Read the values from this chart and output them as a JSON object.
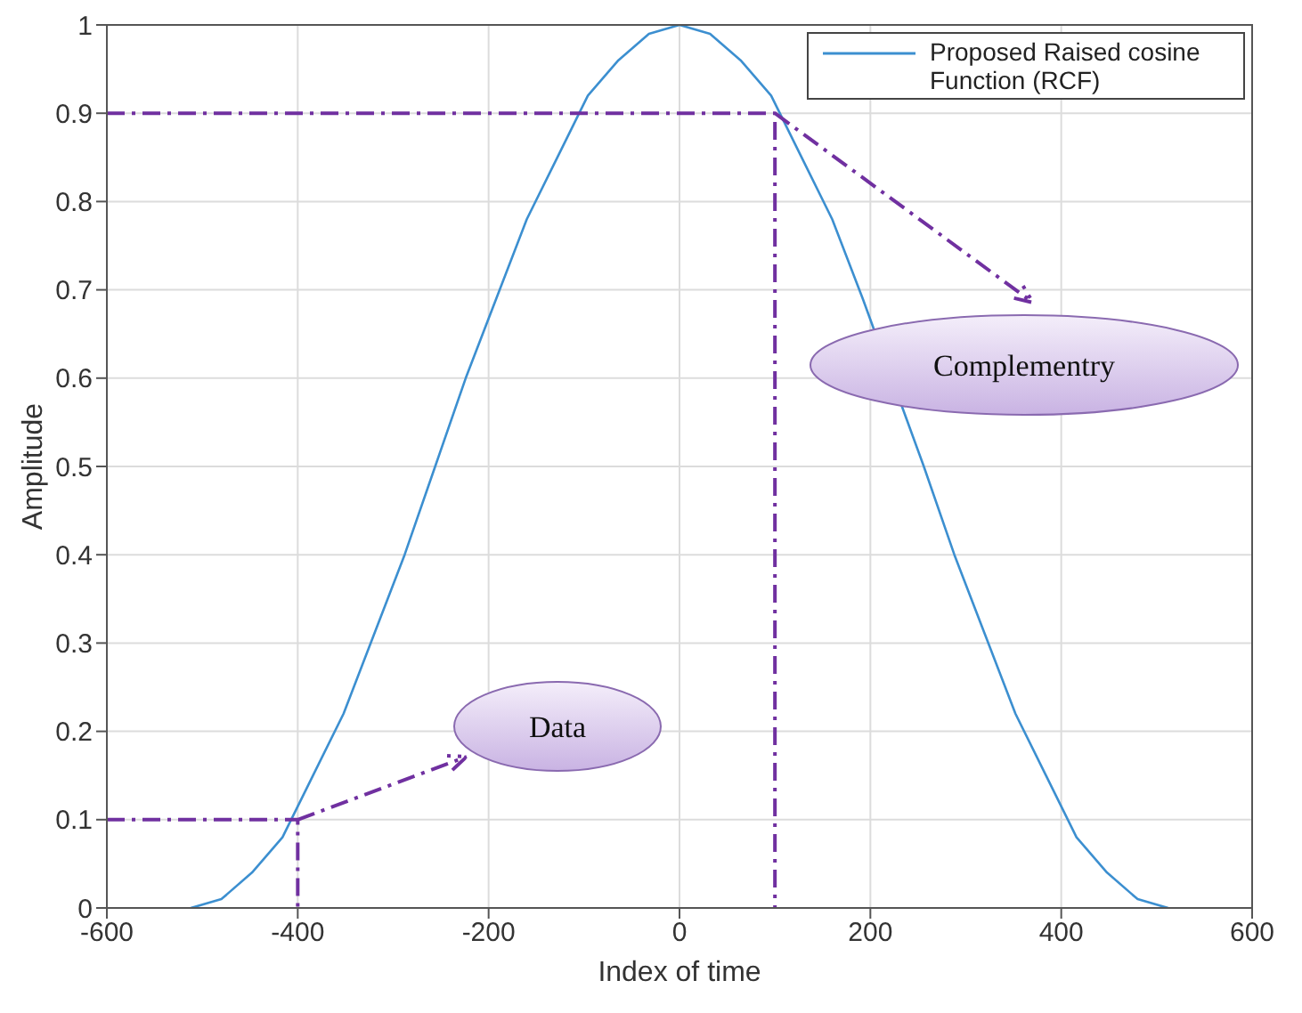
{
  "chart_data": {
    "type": "line",
    "xlabel": "Index of time",
    "ylabel": "Amplitude",
    "xlim": [
      -600,
      600
    ],
    "xticks": [
      -600,
      -400,
      -200,
      0,
      200,
      400,
      600
    ],
    "ylim": [
      0,
      1
    ],
    "yticks": [
      0,
      0.1,
      0.2,
      0.3,
      0.4,
      0.5,
      0.6,
      0.7,
      0.8,
      0.9,
      1
    ],
    "grid": true,
    "legend": "top right",
    "marker": "none",
    "series": [
      {
        "name": "Proposed Raised cosine Function (RCF)",
        "color": "#3c8fd0",
        "line_style": "solid",
        "x": [
          -512,
          -480,
          -448,
          -416,
          -384,
          -352,
          -320,
          -288,
          -256,
          -224,
          -192,
          -160,
          -128,
          -96,
          -64,
          -32,
          0,
          32,
          64,
          96,
          128,
          160,
          192,
          224,
          256,
          288,
          320,
          352,
          384,
          416,
          448,
          480,
          512
        ],
        "values": [
          0,
          0.01,
          0.04,
          0.08,
          0.15,
          0.22,
          0.31,
          0.4,
          0.5,
          0.6,
          0.69,
          0.78,
          0.85,
          0.92,
          0.96,
          0.99,
          1,
          0.99,
          0.96,
          0.92,
          0.85,
          0.78,
          0.69,
          null,
          0.5,
          0.4,
          0.31,
          0.22,
          0.15,
          0.08,
          0.04,
          0.01,
          0
        ]
      },
      {
        "color": "#7030a0",
        "line_style": "dashed",
        "x": [
          -600,
          100,
          100
        ],
        "values": [
          0.9,
          0.9,
          0
        ]
      },
      {
        "color": "#7030a0",
        "line_style": "dashed",
        "x": [
          -600,
          -400,
          -400
        ],
        "values": [
          0.1,
          0.1,
          0
        ]
      }
    ],
    "annotations": [
      "Complementry",
      "Data"
    ]
  }
}
